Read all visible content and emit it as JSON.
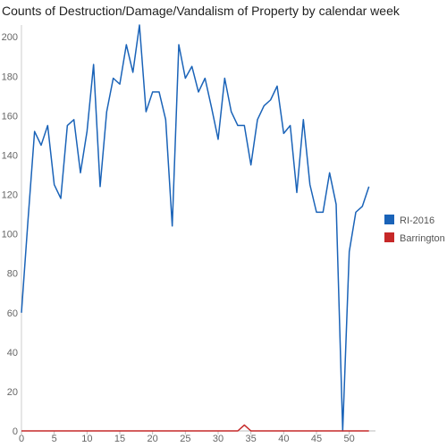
{
  "chart_data": {
    "type": "line",
    "title": "Counts of Destruction/Damage/Vandalism of Property by calendar week",
    "xlabel": "",
    "ylabel": "",
    "xlim": [
      0,
      54
    ],
    "ylim": [
      0,
      206
    ],
    "x_ticks": [
      0,
      5,
      10,
      15,
      20,
      25,
      30,
      35,
      40,
      45,
      50
    ],
    "y_ticks": [
      0,
      20,
      40,
      60,
      80,
      100,
      120,
      140,
      160,
      180,
      200
    ],
    "grid": false,
    "legend_position": "right",
    "x": [
      0,
      1,
      2,
      3,
      4,
      5,
      6,
      7,
      8,
      9,
      10,
      11,
      12,
      13,
      14,
      15,
      16,
      17,
      18,
      19,
      20,
      21,
      22,
      23,
      24,
      25,
      26,
      27,
      28,
      29,
      30,
      31,
      32,
      33,
      34,
      35,
      36,
      37,
      38,
      39,
      40,
      41,
      42,
      43,
      44,
      45,
      46,
      47,
      48,
      49,
      50,
      51,
      52,
      53
    ],
    "series": [
      {
        "name": "RI-2016",
        "color": "#1a63b8",
        "values": [
          60,
          107,
          152,
          145,
          155,
          125,
          118,
          155,
          158,
          131,
          152,
          186,
          124,
          162,
          179,
          176,
          196,
          182,
          206,
          162,
          172,
          172,
          158,
          104,
          196,
          179,
          185,
          172,
          179,
          164,
          148,
          179,
          162,
          155,
          155,
          135,
          158,
          165,
          168,
          175,
          151,
          155,
          121,
          158,
          125,
          111,
          111,
          131,
          115,
          0,
          91,
          111,
          114,
          124
        ]
      },
      {
        "name": "Barrington",
        "color": "#c62828",
        "values": [
          0,
          0,
          0,
          0,
          0,
          0,
          0,
          0,
          0,
          0,
          0,
          0,
          0,
          0,
          0,
          0,
          0,
          0,
          0,
          0,
          0,
          0,
          0,
          0,
          0,
          0,
          0,
          0,
          0,
          0,
          0,
          0,
          0,
          0,
          3,
          0,
          0,
          0,
          0,
          0,
          0,
          0,
          0,
          0,
          0,
          0,
          0,
          0,
          0,
          0,
          0,
          0,
          0,
          0
        ]
      }
    ]
  }
}
